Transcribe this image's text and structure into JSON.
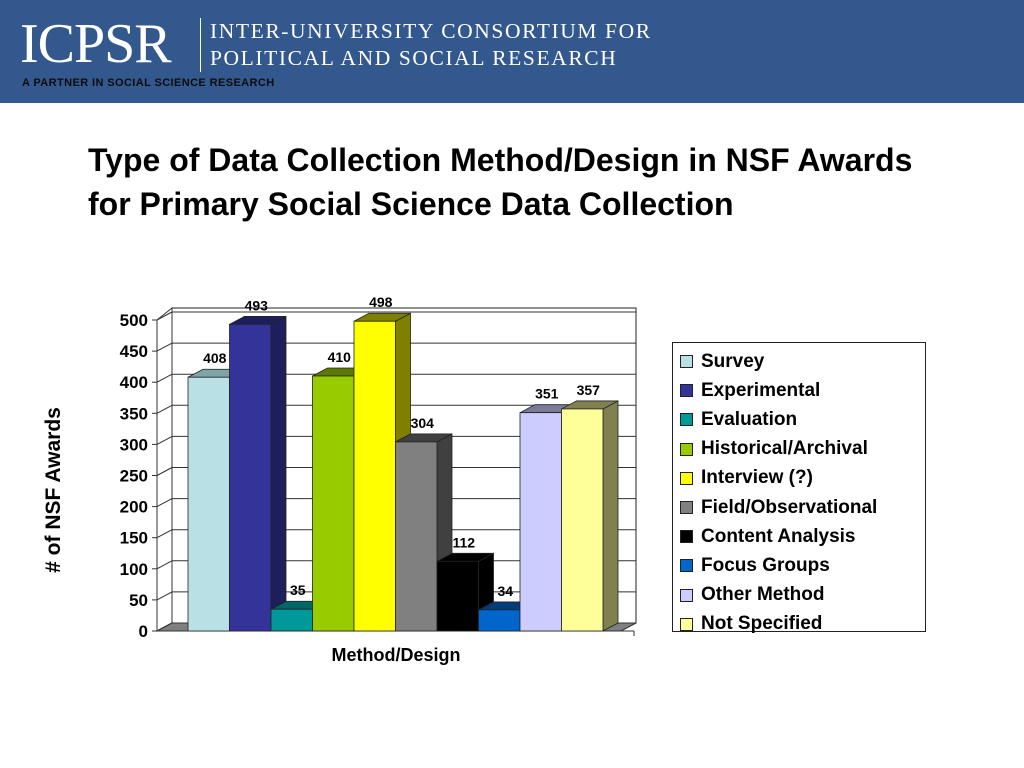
{
  "header": {
    "logo": "ICPSR",
    "org_line1": "INTER-UNIVERSITY CONSORTIUM FOR",
    "org_line2": "POLITICAL AND SOCIAL RESEARCH",
    "tagline": "A PARTNER IN SOCIAL SCIENCE RESEARCH",
    "color": "#33588e"
  },
  "slide": {
    "title": "Type of Data Collection Method/Design in NSF Awards for Primary Social Science Data Collection"
  },
  "chart_data": {
    "type": "bar",
    "title": "Type of Data Collection Method/Design in NSF Awards for Primary Social Science Data Collection",
    "xlabel": "Method/Design",
    "ylabel": "# of NSF Awards",
    "ylim": [
      0,
      500
    ],
    "yticks": [
      "0",
      "50",
      "100",
      "150",
      "200",
      "250",
      "300",
      "350",
      "400",
      "450",
      "500"
    ],
    "grid": true,
    "legend_position": "right",
    "categories": [
      "Survey",
      "Experimental",
      "Evaluation",
      "Historical/Archival",
      "Interview (?)",
      "Field/Observational",
      "Content Analysis",
      "Focus Groups",
      "Other Method",
      "Not Specified"
    ],
    "values": [
      408,
      493,
      35,
      410,
      498,
      304,
      112,
      34,
      351,
      357
    ],
    "labels": [
      "408",
      "493",
      "35",
      "410",
      "498",
      "304",
      "112",
      "34",
      "351",
      "357"
    ],
    "colors": [
      "#b9e0e4",
      "#333399",
      "#009999",
      "#99cc00",
      "#ffff00",
      "#808080",
      "#000000",
      "#0066cc",
      "#ccccff",
      "#ffff99"
    ],
    "side_colors": [
      "#7fa3a7",
      "#1e1e5c",
      "#006666",
      "#5c7a00",
      "#808000",
      "#404040",
      "#000000",
      "#003d7a",
      "#7a7a99",
      "#808050"
    ]
  }
}
